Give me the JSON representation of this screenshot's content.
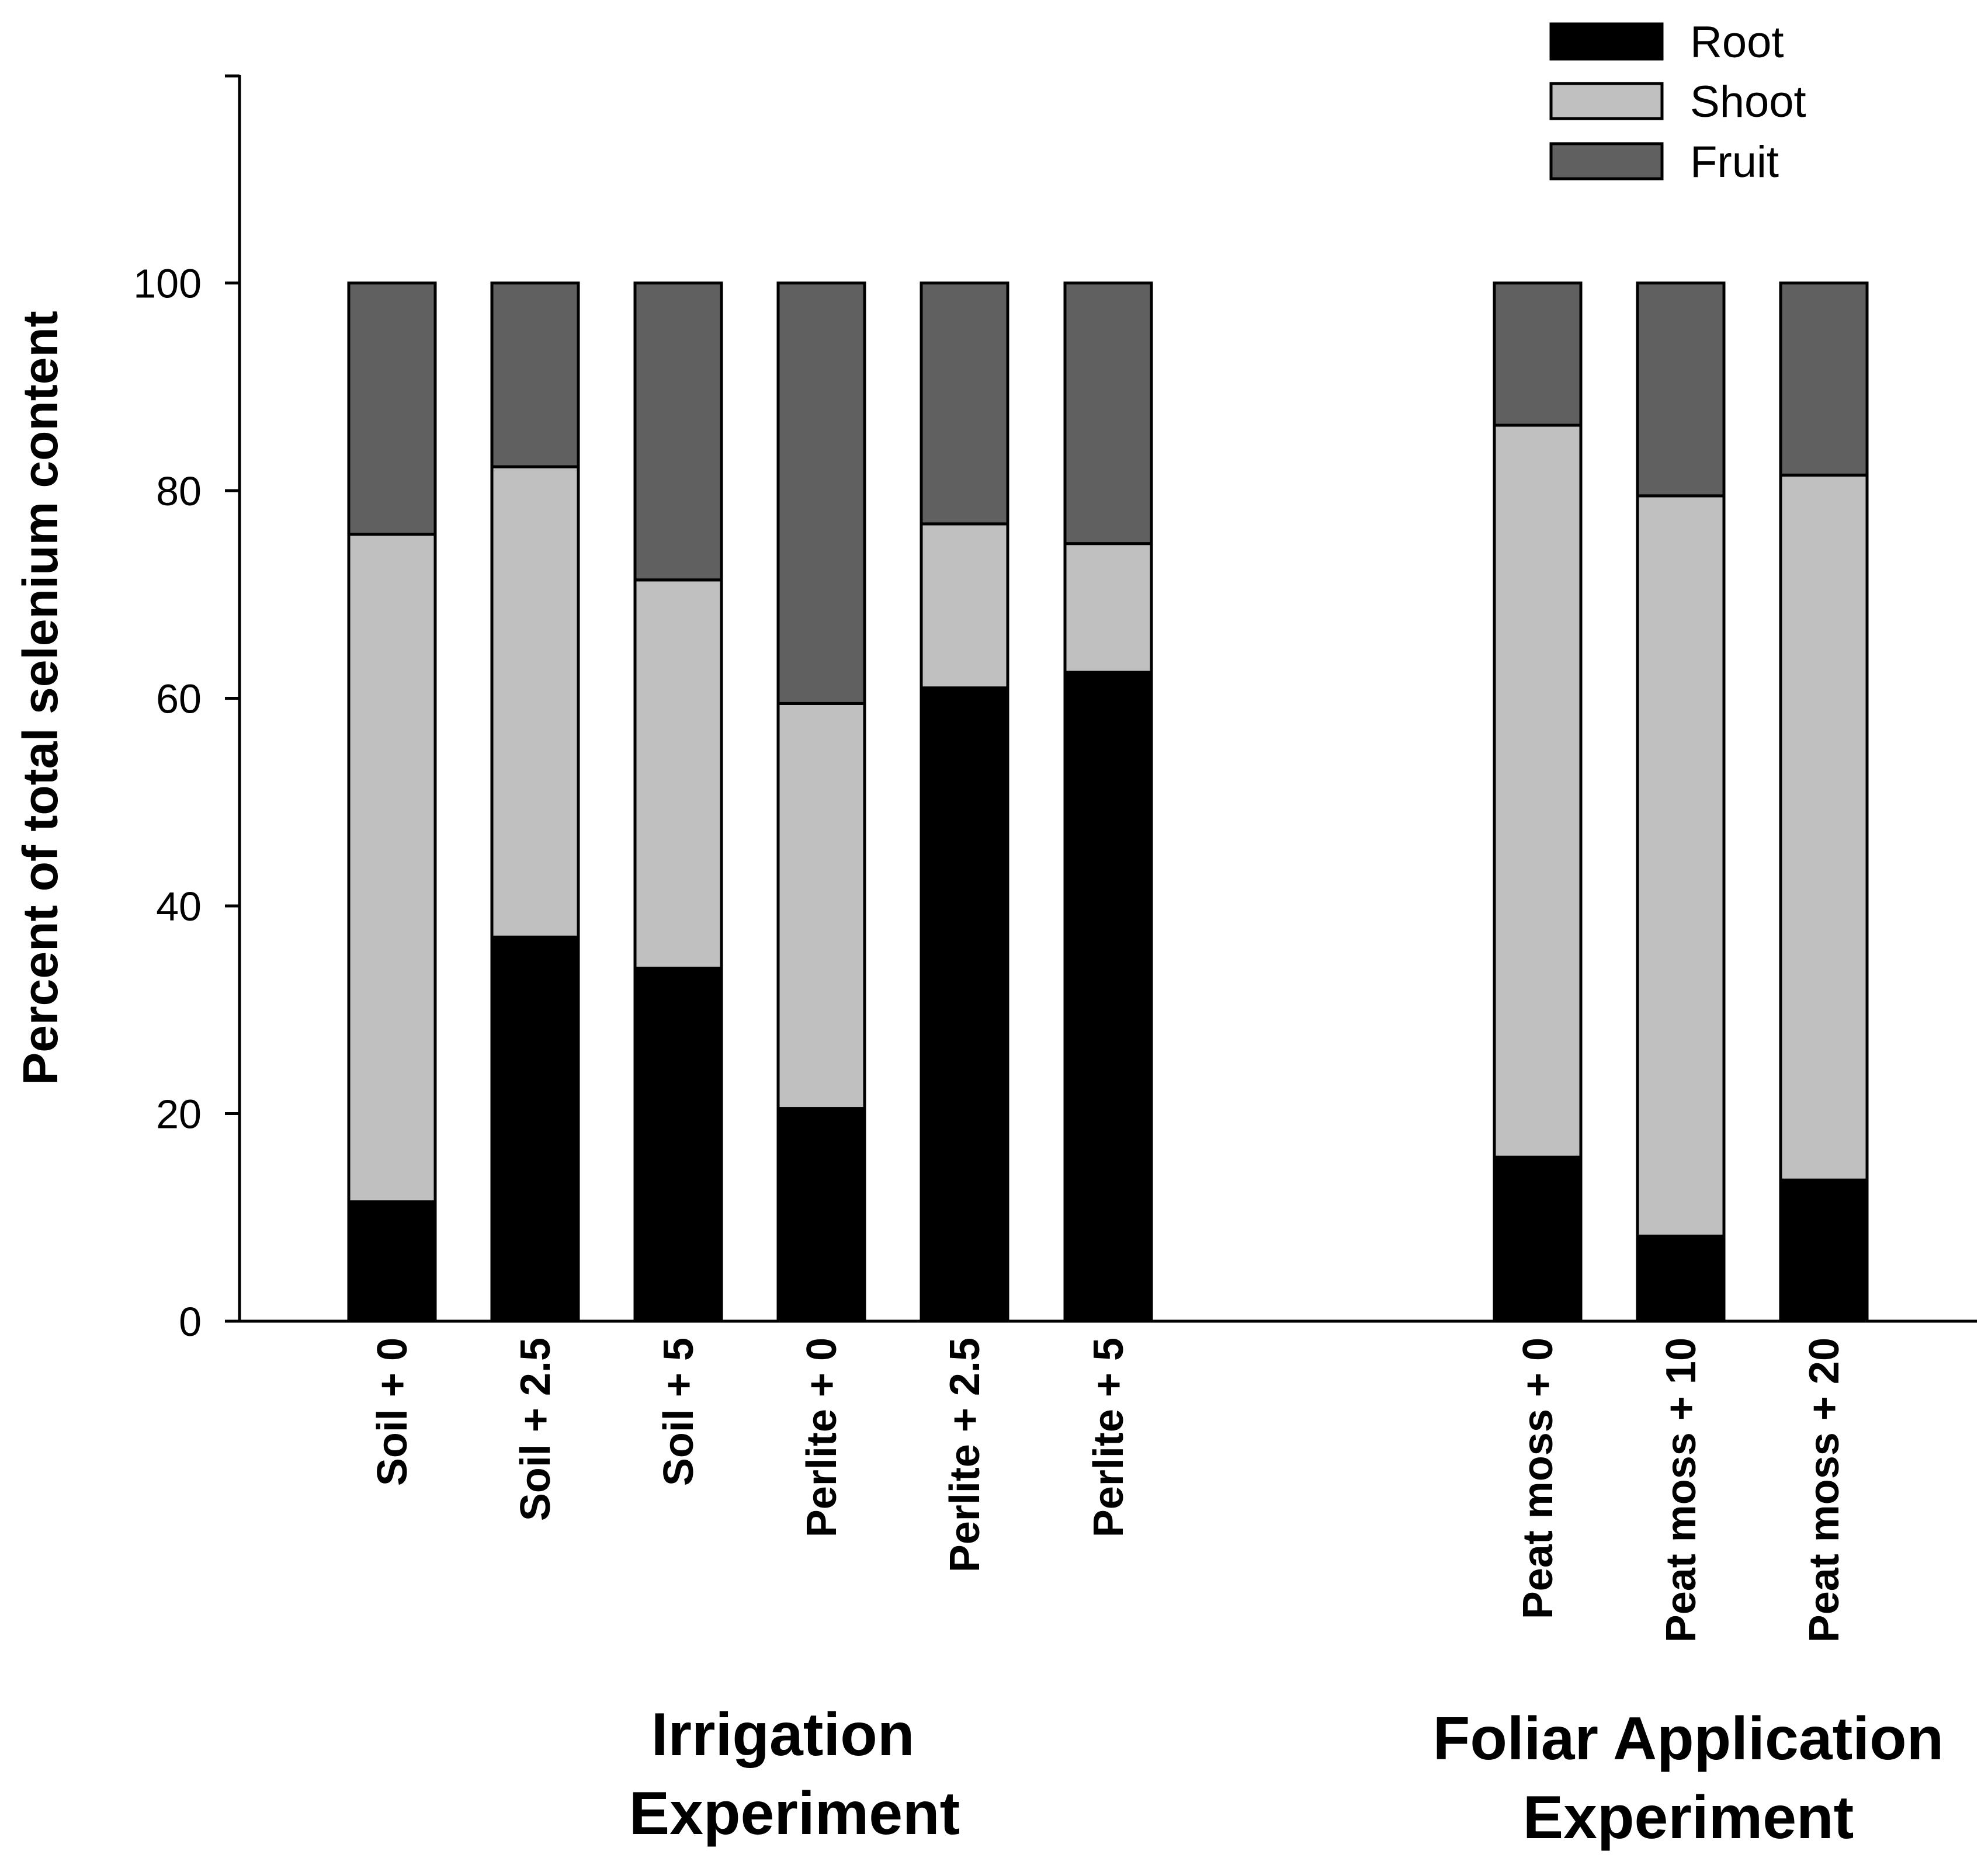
{
  "chart_data": {
    "type": "bar",
    "stacked": true,
    "ylabel": "Percent of total selenium content",
    "ylim": [
      0,
      120
    ],
    "yticks": [
      0,
      20,
      40,
      60,
      80,
      100
    ],
    "ytick_labels": [
      "0",
      "20",
      "40",
      "60",
      "80",
      "100"
    ],
    "categories": [
      "Soil + 0",
      "Soil + 2.5",
      "Soil + 5",
      "Perlite + 0",
      "Perlite + 2.5",
      "Perlite + 5",
      "Peat moss + 0",
      "Peat moss + 10",
      "Peat moss + 20"
    ],
    "groups": [
      {
        "label_line1": "Irrigation",
        "label_line2": "Experiment",
        "categories": [
          0,
          1,
          2,
          3,
          4,
          5
        ]
      },
      {
        "label_line1": "Foliar Application",
        "label_line2": "Experiment",
        "categories": [
          6,
          7,
          8
        ]
      }
    ],
    "series": [
      {
        "name": "Root",
        "color": "#000000",
        "values": [
          11.5,
          37,
          34,
          20.5,
          61,
          62.5,
          15.8,
          8.2,
          13.6
        ]
      },
      {
        "name": "Shoot",
        "color": "#c0c0c0",
        "values": [
          64.3,
          45.3,
          37.4,
          39,
          15.8,
          12.4,
          70.5,
          71.3,
          67.9
        ]
      },
      {
        "name": "Fruit",
        "color": "#606060",
        "values": [
          24.2,
          17.7,
          28.6,
          40.5,
          23.2,
          25.1,
          13.7,
          20.5,
          18.5
        ]
      }
    ],
    "legend_position": "top-right"
  }
}
